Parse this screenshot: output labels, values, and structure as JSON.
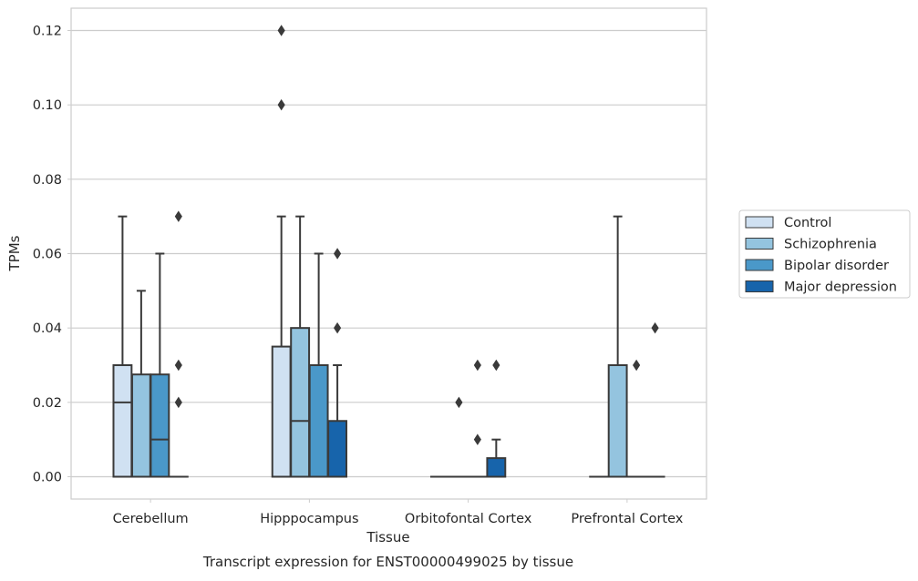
{
  "chart_data": {
    "type": "box",
    "title": "",
    "caption": "Transcript expression for ENST00000499025 by tissue",
    "xlabel": "Tissue",
    "ylabel": "TPMs",
    "ylim": [
      -0.006,
      0.126
    ],
    "yticks": [
      0.0,
      0.02,
      0.04,
      0.06,
      0.08,
      0.1,
      0.12
    ],
    "ytick_labels": [
      "0.00",
      "0.02",
      "0.04",
      "0.06",
      "0.08",
      "0.10",
      "0.12"
    ],
    "grid": "horizontal",
    "legend_position": "right",
    "categories": [
      "Cerebellum",
      "Hipppocampus",
      "Orbitofontal Cortex",
      "Prefrontal Cortex"
    ],
    "series": [
      {
        "name": "Control",
        "color": "#d0e1f2",
        "boxes": [
          {
            "min": 0.0,
            "q1": 0.0,
            "median": 0.02,
            "q3": 0.03,
            "max": 0.07,
            "outliers": []
          },
          {
            "min": 0.0,
            "q1": 0.0,
            "median": 0.0,
            "q3": 0.035,
            "max": 0.07,
            "outliers": [
              0.1,
              0.12
            ]
          },
          {
            "min": 0.0,
            "q1": 0.0,
            "median": 0.0,
            "q3": 0.0,
            "max": 0.0,
            "outliers": []
          },
          {
            "min": 0.0,
            "q1": 0.0,
            "median": 0.0,
            "q3": 0.0,
            "max": 0.0,
            "outliers": []
          }
        ]
      },
      {
        "name": "Schizophrenia",
        "color": "#94c4df",
        "boxes": [
          {
            "min": 0.0,
            "q1": 0.0,
            "median": 0.0,
            "q3": 0.0275,
            "max": 0.05,
            "outliers": []
          },
          {
            "min": 0.0,
            "q1": 0.0,
            "median": 0.015,
            "q3": 0.04,
            "max": 0.07,
            "outliers": []
          },
          {
            "min": 0.0,
            "q1": 0.0,
            "median": 0.0,
            "q3": 0.0,
            "max": 0.0,
            "outliers": [
              0.02
            ]
          },
          {
            "min": 0.0,
            "q1": 0.0,
            "median": 0.0,
            "q3": 0.03,
            "max": 0.07,
            "outliers": []
          }
        ]
      },
      {
        "name": "Bipolar disorder",
        "color": "#4a98c9",
        "boxes": [
          {
            "min": 0.0,
            "q1": 0.0,
            "median": 0.01,
            "q3": 0.0275,
            "max": 0.06,
            "outliers": []
          },
          {
            "min": 0.0,
            "q1": 0.0,
            "median": 0.0,
            "q3": 0.03,
            "max": 0.06,
            "outliers": []
          },
          {
            "min": 0.0,
            "q1": 0.0,
            "median": 0.0,
            "q3": 0.0,
            "max": 0.0,
            "outliers": [
              0.01,
              0.03
            ]
          },
          {
            "min": 0.0,
            "q1": 0.0,
            "median": 0.0,
            "q3": 0.0,
            "max": 0.0,
            "outliers": [
              0.03
            ]
          }
        ]
      },
      {
        "name": "Major depression",
        "color": "#1764ab",
        "boxes": [
          {
            "min": 0.0,
            "q1": 0.0,
            "median": 0.0,
            "q3": 0.0,
            "max": 0.0,
            "outliers": [
              0.02,
              0.03,
              0.07
            ]
          },
          {
            "min": 0.0,
            "q1": 0.0,
            "median": 0.0,
            "q3": 0.015,
            "max": 0.03,
            "outliers": [
              0.04,
              0.06
            ]
          },
          {
            "min": 0.0,
            "q1": 0.0,
            "median": 0.0,
            "q3": 0.005,
            "max": 0.01,
            "outliers": [
              0.03
            ]
          },
          {
            "min": 0.0,
            "q1": 0.0,
            "median": 0.0,
            "q3": 0.0,
            "max": 0.0,
            "outliers": [
              0.04
            ]
          }
        ]
      }
    ]
  }
}
